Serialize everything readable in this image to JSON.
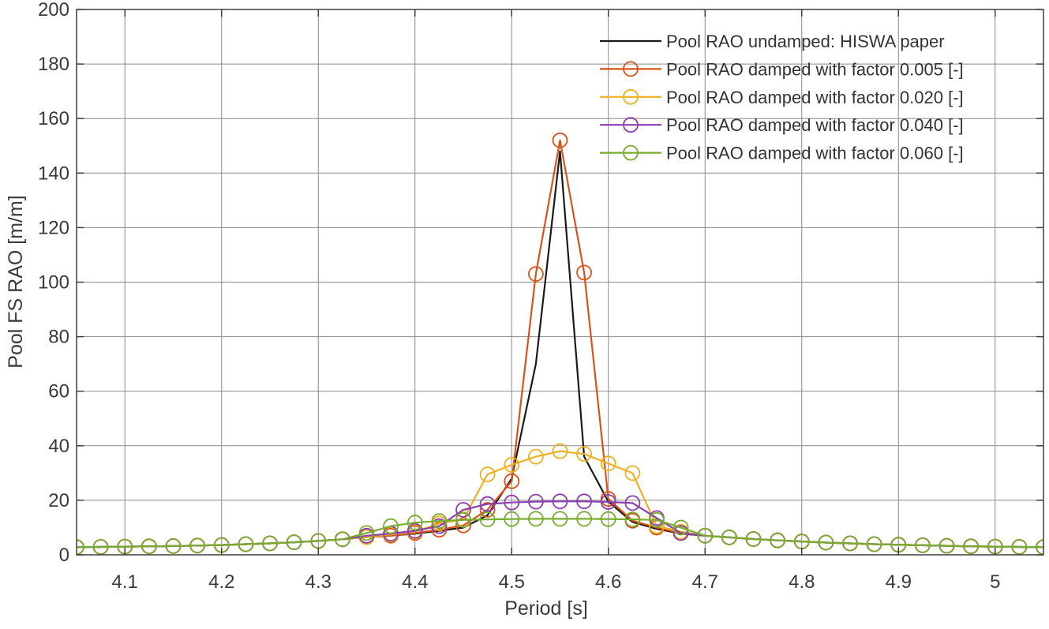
{
  "figure": {
    "background": "#ffffff"
  },
  "chart_data": {
    "type": "line",
    "title": "",
    "xlabel": "Period [s]",
    "ylabel": "Pool FS RAO [m/m]",
    "xlim": [
      4.05,
      5.05
    ],
    "ylim": [
      0,
      200
    ],
    "grid": true,
    "legend_position": "top-right",
    "legend_frame": false,
    "xticks": {
      "values": [
        4.1,
        4.2,
        4.3,
        4.4,
        4.5,
        4.6,
        4.7,
        4.8,
        4.9,
        5.0
      ],
      "labels": [
        "4.1",
        "4.2",
        "4.3",
        "4.4",
        "4.5",
        "4.6",
        "4.7",
        "4.8",
        "4.9",
        "5"
      ]
    },
    "yticks": {
      "values": [
        0,
        20,
        40,
        60,
        80,
        100,
        120,
        140,
        160,
        180,
        200
      ],
      "labels": [
        "0",
        "20",
        "40",
        "60",
        "80",
        "100",
        "120",
        "140",
        "160",
        "180",
        "200"
      ]
    },
    "x": [
      4.05,
      4.075,
      4.1,
      4.125,
      4.15,
      4.175,
      4.2,
      4.225,
      4.25,
      4.275,
      4.3,
      4.325,
      4.35,
      4.375,
      4.4,
      4.425,
      4.45,
      4.475,
      4.5,
      4.525,
      4.55,
      4.575,
      4.6,
      4.625,
      4.65,
      4.675,
      4.7,
      4.725,
      4.75,
      4.775,
      4.8,
      4.825,
      4.85,
      4.875,
      4.9,
      4.925,
      4.95,
      4.975,
      5.0,
      5.025,
      5.05
    ],
    "series": [
      {
        "name": "Pool RAO undamped: HISWA paper",
        "color": "#1a1a1a",
        "marker": "none",
        "values": [
          2.8,
          2.9,
          3.0,
          3.1,
          3.2,
          3.4,
          3.6,
          3.9,
          4.2,
          4.6,
          5.1,
          5.7,
          6.5,
          7.0,
          7.8,
          8.8,
          10.0,
          14.5,
          28,
          70,
          148,
          36,
          19.5,
          12,
          9.5,
          7.8,
          7.0,
          6.4,
          5.8,
          5.3,
          4.9,
          4.5,
          4.2,
          3.9,
          3.7,
          3.5,
          3.3,
          3.1,
          3.0,
          2.9,
          2.8
        ]
      },
      {
        "name": "Pool RAO damped with factor 0.005 [-]",
        "color": "#d95319",
        "marker": "circle",
        "values": [
          2.8,
          2.9,
          3.0,
          3.1,
          3.2,
          3.4,
          3.6,
          3.9,
          4.2,
          4.6,
          5.1,
          5.7,
          6.5,
          7.0,
          8.0,
          9.2,
          10.8,
          16.5,
          27,
          103,
          152,
          103.5,
          20.5,
          12.5,
          10.0,
          8.0,
          7.0,
          6.4,
          5.8,
          5.3,
          4.9,
          4.5,
          4.2,
          3.9,
          3.7,
          3.5,
          3.3,
          3.1,
          3.0,
          2.9,
          2.8
        ]
      },
      {
        "name": "Pool RAO damped with factor 0.020 [-]",
        "color": "#edb120",
        "marker": "circle",
        "values": [
          2.8,
          2.9,
          3.0,
          3.1,
          3.2,
          3.4,
          3.6,
          3.9,
          4.2,
          4.6,
          5.1,
          5.7,
          6.5,
          7.5,
          8.5,
          11.5,
          13.0,
          29.5,
          33,
          36,
          38,
          37,
          33.5,
          30,
          10.5,
          8.5,
          7.0,
          6.4,
          5.8,
          5.3,
          4.9,
          4.5,
          4.2,
          3.9,
          3.7,
          3.5,
          3.3,
          3.1,
          3.0,
          2.9,
          2.8
        ]
      },
      {
        "name": "Pool RAO damped with factor 0.040 [-]",
        "color": "#8c3fae",
        "marker": "circle",
        "values": [
          2.8,
          2.9,
          3.0,
          3.1,
          3.2,
          3.4,
          3.6,
          3.9,
          4.2,
          4.6,
          5.1,
          5.7,
          7.0,
          7.8,
          8.8,
          10.5,
          16.5,
          18.6,
          19.2,
          19.5,
          19.6,
          19.6,
          19.4,
          19.0,
          13.5,
          8.0,
          7.0,
          6.4,
          5.8,
          5.3,
          4.9,
          4.5,
          4.2,
          3.9,
          3.7,
          3.5,
          3.3,
          3.1,
          3.0,
          2.9,
          2.8
        ]
      },
      {
        "name": "Pool RAO damped with factor 0.060 [-]",
        "color": "#77ac30",
        "marker": "circle",
        "values": [
          2.8,
          2.9,
          3.0,
          3.1,
          3.2,
          3.4,
          3.6,
          3.9,
          4.2,
          4.6,
          5.1,
          5.7,
          8.0,
          10.5,
          11.8,
          12.4,
          12.8,
          13.0,
          13.1,
          13.2,
          13.2,
          13.2,
          13.1,
          13.0,
          12.8,
          10.0,
          7.0,
          6.4,
          5.8,
          5.3,
          4.9,
          4.5,
          4.2,
          3.9,
          3.7,
          3.5,
          3.3,
          3.1,
          3.0,
          2.9,
          2.8
        ]
      }
    ]
  }
}
